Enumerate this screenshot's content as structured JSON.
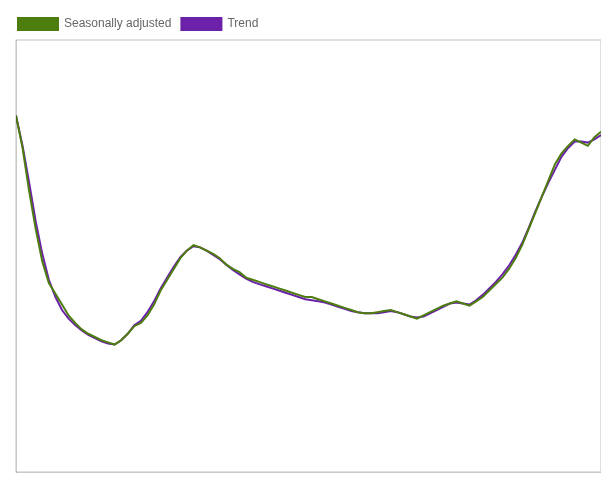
{
  "chart_data": {
    "type": "line",
    "x": [
      0,
      1,
      2,
      3,
      4,
      5,
      6,
      7,
      8,
      9,
      10,
      11,
      12,
      13,
      14,
      15,
      16,
      17,
      18,
      19,
      20,
      21,
      22,
      23,
      24,
      25,
      26,
      27,
      28,
      29,
      30,
      31,
      32,
      33,
      34,
      35,
      36,
      37,
      38,
      39,
      40,
      41,
      42,
      43,
      44,
      45,
      46,
      47,
      48,
      49,
      50,
      51,
      52,
      53,
      54,
      55,
      56,
      57,
      58,
      59,
      60,
      61,
      62,
      63,
      64,
      65,
      66,
      67,
      68,
      69,
      70,
      71,
      72,
      73,
      74,
      75,
      76,
      77,
      78,
      79,
      80,
      81,
      82,
      83,
      84,
      85,
      86,
      87,
      88,
      89
    ],
    "series": [
      {
        "name": "Seasonally adjusted",
        "color": "#4d7c0f",
        "values": [
          4.8,
          4.5,
          4.1,
          3.75,
          3.45,
          3.25,
          3.15,
          3.05,
          2.95,
          2.88,
          2.82,
          2.78,
          2.75,
          2.72,
          2.7,
          2.68,
          2.72,
          2.78,
          2.85,
          2.88,
          2.95,
          3.05,
          3.18,
          3.28,
          3.38,
          3.48,
          3.55,
          3.6,
          3.58,
          3.55,
          3.52,
          3.48,
          3.42,
          3.38,
          3.35,
          3.3,
          3.28,
          3.26,
          3.24,
          3.22,
          3.2,
          3.18,
          3.16,
          3.14,
          3.12,
          3.12,
          3.1,
          3.08,
          3.06,
          3.04,
          3.02,
          3.0,
          2.98,
          2.97,
          2.97,
          2.98,
          2.99,
          3.0,
          2.98,
          2.96,
          2.94,
          2.92,
          2.95,
          2.98,
          3.01,
          3.04,
          3.06,
          3.08,
          3.06,
          3.04,
          3.08,
          3.12,
          3.18,
          3.24,
          3.3,
          3.38,
          3.48,
          3.6,
          3.75,
          3.9,
          4.05,
          4.2,
          4.35,
          4.45,
          4.52,
          4.58,
          4.55,
          4.52,
          4.6,
          4.65
        ]
      },
      {
        "name": "Trend",
        "color": "#6b21a8",
        "values": [
          4.8,
          4.52,
          4.18,
          3.82,
          3.52,
          3.28,
          3.12,
          3.0,
          2.92,
          2.86,
          2.81,
          2.77,
          2.74,
          2.71,
          2.69,
          2.68,
          2.72,
          2.78,
          2.86,
          2.9,
          2.98,
          3.08,
          3.2,
          3.3,
          3.4,
          3.49,
          3.55,
          3.59,
          3.58,
          3.55,
          3.51,
          3.47,
          3.42,
          3.37,
          3.33,
          3.29,
          3.26,
          3.24,
          3.22,
          3.2,
          3.18,
          3.16,
          3.14,
          3.12,
          3.1,
          3.09,
          3.08,
          3.07,
          3.05,
          3.03,
          3.01,
          2.99,
          2.98,
          2.97,
          2.97,
          2.97,
          2.98,
          2.99,
          2.98,
          2.96,
          2.94,
          2.93,
          2.94,
          2.97,
          3.0,
          3.03,
          3.06,
          3.07,
          3.06,
          3.05,
          3.09,
          3.14,
          3.2,
          3.26,
          3.33,
          3.41,
          3.51,
          3.62,
          3.76,
          3.91,
          4.05,
          4.18,
          4.3,
          4.42,
          4.5,
          4.56,
          4.56,
          4.55,
          4.58,
          4.62
        ]
      }
    ],
    "xlim": [
      0,
      89
    ],
    "ylim": [
      1.5,
      5.5
    ],
    "xticks": [],
    "yticks": [],
    "grid": false,
    "tick_labels": false,
    "legend": "upper left"
  }
}
